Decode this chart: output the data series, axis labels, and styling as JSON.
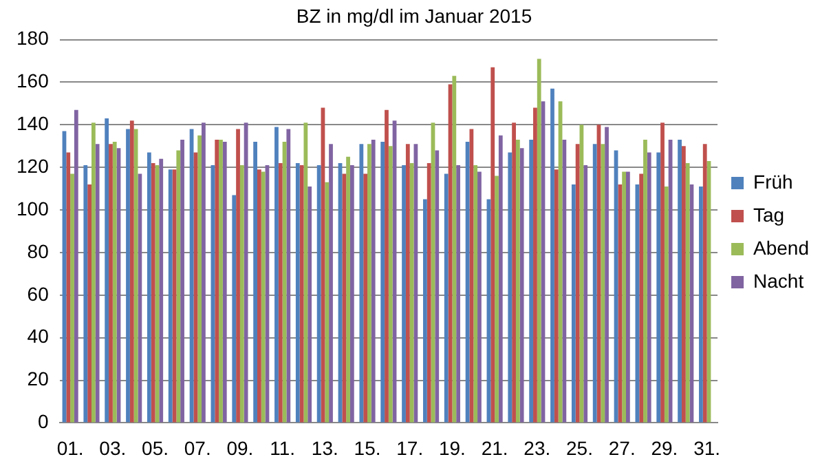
{
  "chart_data": {
    "type": "bar",
    "title": "BZ in mg/dl im Januar 2015",
    "categories": [
      "01.",
      null,
      "03.",
      null,
      "05.",
      null,
      "07.",
      null,
      "09.",
      null,
      "11.",
      null,
      "13.",
      null,
      "15.",
      null,
      "17.",
      null,
      "19.",
      null,
      "21.",
      null,
      "23.",
      null,
      "25.",
      null,
      "27.",
      null,
      "29.",
      null,
      "31."
    ],
    "series": [
      {
        "name": "Früh",
        "color": "#4f81bd",
        "values": [
          137,
          121,
          143,
          138,
          127,
          119,
          138,
          121,
          107,
          132,
          139,
          122,
          121,
          122,
          131,
          132,
          121,
          105,
          117,
          132,
          105,
          127,
          133,
          157,
          112,
          131,
          128,
          112,
          127,
          133,
          111
        ]
      },
      {
        "name": "Tag",
        "color": "#c0504d",
        "values": [
          127,
          112,
          131,
          142,
          122,
          119,
          127,
          133,
          138,
          119,
          122,
          121,
          148,
          117,
          117,
          147,
          131,
          122,
          159,
          138,
          167,
          141,
          148,
          119,
          131,
          140,
          112,
          117,
          141,
          130,
          131
        ]
      },
      {
        "name": "Abend",
        "color": "#9bbb59",
        "values": [
          117,
          141,
          132,
          138,
          121,
          128,
          135,
          133,
          121,
          118,
          132,
          141,
          113,
          125,
          131,
          130,
          122,
          141,
          163,
          121,
          116,
          133,
          171,
          151,
          140,
          131,
          118,
          133,
          111,
          122,
          123
        ]
      },
      {
        "name": "Nacht",
        "color": "#8064a2",
        "values": [
          147,
          131,
          129,
          117,
          124,
          133,
          141,
          132,
          141,
          121,
          138,
          111,
          131,
          121,
          133,
          142,
          131,
          128,
          121,
          118,
          135,
          129,
          151,
          133,
          121,
          139,
          118,
          127,
          133,
          112,
          null
        ]
      }
    ],
    "ylim": [
      0,
      180
    ],
    "yticks": [
      0,
      20,
      40,
      60,
      80,
      100,
      120,
      140,
      160,
      180
    ],
    "grid": "y",
    "legend": "right"
  }
}
